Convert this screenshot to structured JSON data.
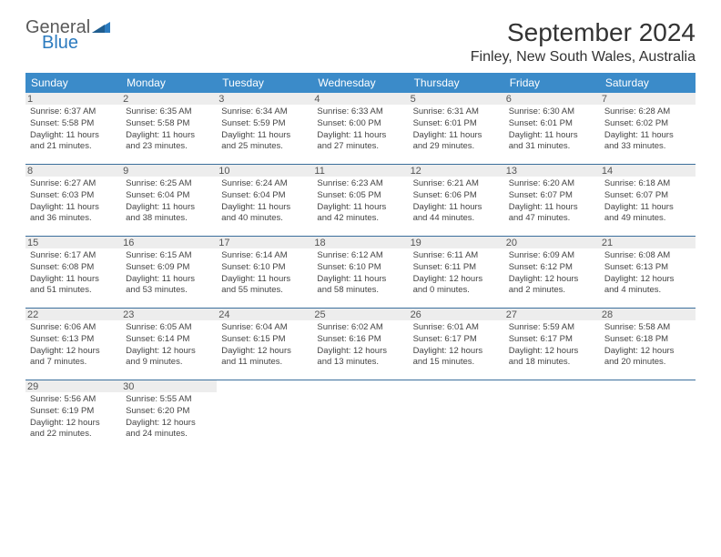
{
  "brand": {
    "general": "General",
    "blue": "Blue"
  },
  "title": "September 2024",
  "location": "Finley, New South Wales, Australia",
  "colors": {
    "header_bg": "#3b8bc9",
    "header_text": "#ffffff",
    "divider": "#3b6f9c",
    "daynum_bg": "#ededed",
    "text": "#444444",
    "logo_gray": "#5a5a5a",
    "logo_blue": "#2c7bbf"
  },
  "dayNames": [
    "Sunday",
    "Monday",
    "Tuesday",
    "Wednesday",
    "Thursday",
    "Friday",
    "Saturday"
  ],
  "weeks": [
    [
      {
        "n": "1",
        "sr": "Sunrise: 6:37 AM",
        "ss": "Sunset: 5:58 PM",
        "d1": "Daylight: 11 hours",
        "d2": "and 21 minutes."
      },
      {
        "n": "2",
        "sr": "Sunrise: 6:35 AM",
        "ss": "Sunset: 5:58 PM",
        "d1": "Daylight: 11 hours",
        "d2": "and 23 minutes."
      },
      {
        "n": "3",
        "sr": "Sunrise: 6:34 AM",
        "ss": "Sunset: 5:59 PM",
        "d1": "Daylight: 11 hours",
        "d2": "and 25 minutes."
      },
      {
        "n": "4",
        "sr": "Sunrise: 6:33 AM",
        "ss": "Sunset: 6:00 PM",
        "d1": "Daylight: 11 hours",
        "d2": "and 27 minutes."
      },
      {
        "n": "5",
        "sr": "Sunrise: 6:31 AM",
        "ss": "Sunset: 6:01 PM",
        "d1": "Daylight: 11 hours",
        "d2": "and 29 minutes."
      },
      {
        "n": "6",
        "sr": "Sunrise: 6:30 AM",
        "ss": "Sunset: 6:01 PM",
        "d1": "Daylight: 11 hours",
        "d2": "and 31 minutes."
      },
      {
        "n": "7",
        "sr": "Sunrise: 6:28 AM",
        "ss": "Sunset: 6:02 PM",
        "d1": "Daylight: 11 hours",
        "d2": "and 33 minutes."
      }
    ],
    [
      {
        "n": "8",
        "sr": "Sunrise: 6:27 AM",
        "ss": "Sunset: 6:03 PM",
        "d1": "Daylight: 11 hours",
        "d2": "and 36 minutes."
      },
      {
        "n": "9",
        "sr": "Sunrise: 6:25 AM",
        "ss": "Sunset: 6:04 PM",
        "d1": "Daylight: 11 hours",
        "d2": "and 38 minutes."
      },
      {
        "n": "10",
        "sr": "Sunrise: 6:24 AM",
        "ss": "Sunset: 6:04 PM",
        "d1": "Daylight: 11 hours",
        "d2": "and 40 minutes."
      },
      {
        "n": "11",
        "sr": "Sunrise: 6:23 AM",
        "ss": "Sunset: 6:05 PM",
        "d1": "Daylight: 11 hours",
        "d2": "and 42 minutes."
      },
      {
        "n": "12",
        "sr": "Sunrise: 6:21 AM",
        "ss": "Sunset: 6:06 PM",
        "d1": "Daylight: 11 hours",
        "d2": "and 44 minutes."
      },
      {
        "n": "13",
        "sr": "Sunrise: 6:20 AM",
        "ss": "Sunset: 6:07 PM",
        "d1": "Daylight: 11 hours",
        "d2": "and 47 minutes."
      },
      {
        "n": "14",
        "sr": "Sunrise: 6:18 AM",
        "ss": "Sunset: 6:07 PM",
        "d1": "Daylight: 11 hours",
        "d2": "and 49 minutes."
      }
    ],
    [
      {
        "n": "15",
        "sr": "Sunrise: 6:17 AM",
        "ss": "Sunset: 6:08 PM",
        "d1": "Daylight: 11 hours",
        "d2": "and 51 minutes."
      },
      {
        "n": "16",
        "sr": "Sunrise: 6:15 AM",
        "ss": "Sunset: 6:09 PM",
        "d1": "Daylight: 11 hours",
        "d2": "and 53 minutes."
      },
      {
        "n": "17",
        "sr": "Sunrise: 6:14 AM",
        "ss": "Sunset: 6:10 PM",
        "d1": "Daylight: 11 hours",
        "d2": "and 55 minutes."
      },
      {
        "n": "18",
        "sr": "Sunrise: 6:12 AM",
        "ss": "Sunset: 6:10 PM",
        "d1": "Daylight: 11 hours",
        "d2": "and 58 minutes."
      },
      {
        "n": "19",
        "sr": "Sunrise: 6:11 AM",
        "ss": "Sunset: 6:11 PM",
        "d1": "Daylight: 12 hours",
        "d2": "and 0 minutes."
      },
      {
        "n": "20",
        "sr": "Sunrise: 6:09 AM",
        "ss": "Sunset: 6:12 PM",
        "d1": "Daylight: 12 hours",
        "d2": "and 2 minutes."
      },
      {
        "n": "21",
        "sr": "Sunrise: 6:08 AM",
        "ss": "Sunset: 6:13 PM",
        "d1": "Daylight: 12 hours",
        "d2": "and 4 minutes."
      }
    ],
    [
      {
        "n": "22",
        "sr": "Sunrise: 6:06 AM",
        "ss": "Sunset: 6:13 PM",
        "d1": "Daylight: 12 hours",
        "d2": "and 7 minutes."
      },
      {
        "n": "23",
        "sr": "Sunrise: 6:05 AM",
        "ss": "Sunset: 6:14 PM",
        "d1": "Daylight: 12 hours",
        "d2": "and 9 minutes."
      },
      {
        "n": "24",
        "sr": "Sunrise: 6:04 AM",
        "ss": "Sunset: 6:15 PM",
        "d1": "Daylight: 12 hours",
        "d2": "and 11 minutes."
      },
      {
        "n": "25",
        "sr": "Sunrise: 6:02 AM",
        "ss": "Sunset: 6:16 PM",
        "d1": "Daylight: 12 hours",
        "d2": "and 13 minutes."
      },
      {
        "n": "26",
        "sr": "Sunrise: 6:01 AM",
        "ss": "Sunset: 6:17 PM",
        "d1": "Daylight: 12 hours",
        "d2": "and 15 minutes."
      },
      {
        "n": "27",
        "sr": "Sunrise: 5:59 AM",
        "ss": "Sunset: 6:17 PM",
        "d1": "Daylight: 12 hours",
        "d2": "and 18 minutes."
      },
      {
        "n": "28",
        "sr": "Sunrise: 5:58 AM",
        "ss": "Sunset: 6:18 PM",
        "d1": "Daylight: 12 hours",
        "d2": "and 20 minutes."
      }
    ],
    [
      {
        "n": "29",
        "sr": "Sunrise: 5:56 AM",
        "ss": "Sunset: 6:19 PM",
        "d1": "Daylight: 12 hours",
        "d2": "and 22 minutes."
      },
      {
        "n": "30",
        "sr": "Sunrise: 5:55 AM",
        "ss": "Sunset: 6:20 PM",
        "d1": "Daylight: 12 hours",
        "d2": "and 24 minutes."
      },
      null,
      null,
      null,
      null,
      null
    ]
  ]
}
